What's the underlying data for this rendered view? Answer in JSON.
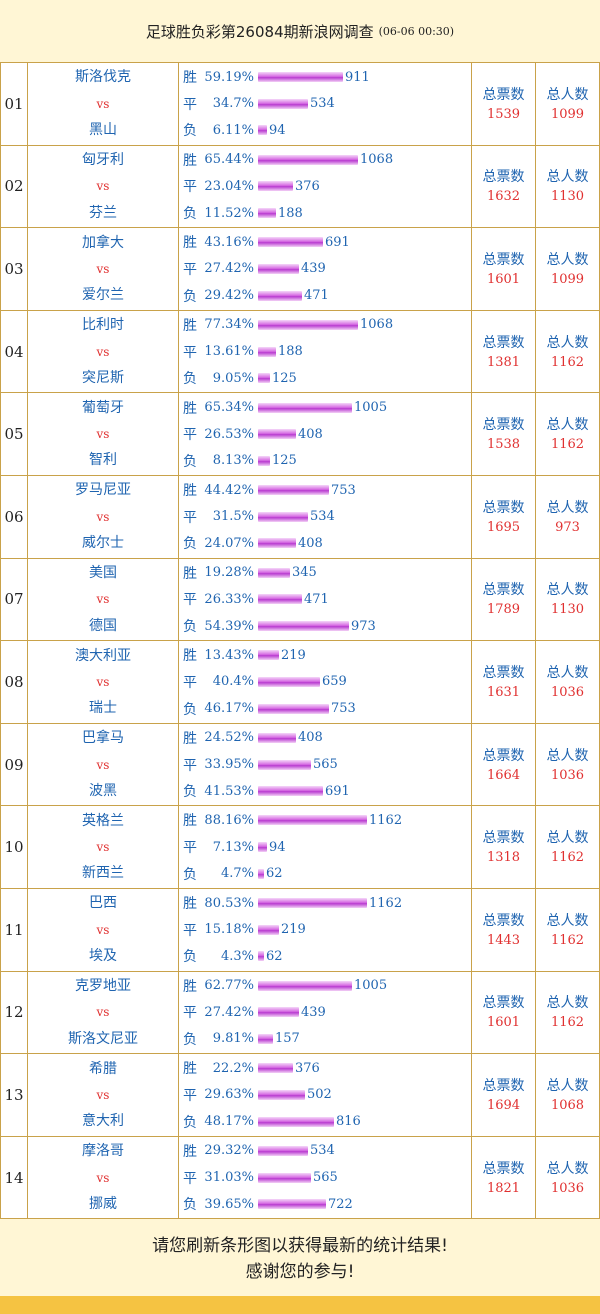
{
  "header": {
    "title": "足球胜负彩第26084期新浪网调查",
    "timestamp": "(06-06 00:30)"
  },
  "labels": {
    "win": "胜",
    "draw": "平",
    "lose": "负",
    "vs": "vs",
    "total_votes": "总票数",
    "total_people": "总人数"
  },
  "matches": [
    {
      "no": "01",
      "home": "斯洛伐克",
      "away": "黑山",
      "win_pct": "59.19%",
      "win": 911,
      "draw_pct": "34.7%",
      "draw": 534,
      "lose_pct": "6.11%",
      "lose": 94,
      "total_votes": "1539",
      "total_people": "1099"
    },
    {
      "no": "02",
      "home": "匈牙利",
      "away": "芬兰",
      "win_pct": "65.44%",
      "win": 1068,
      "draw_pct": "23.04%",
      "draw": 376,
      "lose_pct": "11.52%",
      "lose": 188,
      "total_votes": "1632",
      "total_people": "1130"
    },
    {
      "no": "03",
      "home": "加拿大",
      "away": "爱尔兰",
      "win_pct": "43.16%",
      "win": 691,
      "draw_pct": "27.42%",
      "draw": 439,
      "lose_pct": "29.42%",
      "lose": 471,
      "total_votes": "1601",
      "total_people": "1099"
    },
    {
      "no": "04",
      "home": "比利时",
      "away": "突尼斯",
      "win_pct": "77.34%",
      "win": 1068,
      "draw_pct": "13.61%",
      "draw": 188,
      "lose_pct": "9.05%",
      "lose": 125,
      "total_votes": "1381",
      "total_people": "1162"
    },
    {
      "no": "05",
      "home": "葡萄牙",
      "away": "智利",
      "win_pct": "65.34%",
      "win": 1005,
      "draw_pct": "26.53%",
      "draw": 408,
      "lose_pct": "8.13%",
      "lose": 125,
      "total_votes": "1538",
      "total_people": "1162"
    },
    {
      "no": "06",
      "home": "罗马尼亚",
      "away": "威尔士",
      "win_pct": "44.42%",
      "win": 753,
      "draw_pct": "31.5%",
      "draw": 534,
      "lose_pct": "24.07%",
      "lose": 408,
      "total_votes": "1695",
      "total_people": "973"
    },
    {
      "no": "07",
      "home": "美国",
      "away": "德国",
      "win_pct": "19.28%",
      "win": 345,
      "draw_pct": "26.33%",
      "draw": 471,
      "lose_pct": "54.39%",
      "lose": 973,
      "total_votes": "1789",
      "total_people": "1130"
    },
    {
      "no": "08",
      "home": "澳大利亚",
      "away": "瑞士",
      "win_pct": "13.43%",
      "win": 219,
      "draw_pct": "40.4%",
      "draw": 659,
      "lose_pct": "46.17%",
      "lose": 753,
      "total_votes": "1631",
      "total_people": "1036"
    },
    {
      "no": "09",
      "home": "巴拿马",
      "away": "波黑",
      "win_pct": "24.52%",
      "win": 408,
      "draw_pct": "33.95%",
      "draw": 565,
      "lose_pct": "41.53%",
      "lose": 691,
      "total_votes": "1664",
      "total_people": "1036"
    },
    {
      "no": "10",
      "home": "英格兰",
      "away": "新西兰",
      "win_pct": "88.16%",
      "win": 1162,
      "draw_pct": "7.13%",
      "draw": 94,
      "lose_pct": "4.7%",
      "lose": 62,
      "total_votes": "1318",
      "total_people": "1162"
    },
    {
      "no": "11",
      "home": "巴西",
      "away": "埃及",
      "win_pct": "80.53%",
      "win": 1162,
      "draw_pct": "15.18%",
      "draw": 219,
      "lose_pct": "4.3%",
      "lose": 62,
      "total_votes": "1443",
      "total_people": "1162"
    },
    {
      "no": "12",
      "home": "克罗地亚",
      "away": "斯洛文尼亚",
      "win_pct": "62.77%",
      "win": 1005,
      "draw_pct": "27.42%",
      "draw": 439,
      "lose_pct": "9.81%",
      "lose": 157,
      "total_votes": "1601",
      "total_people": "1162"
    },
    {
      "no": "13",
      "home": "希腊",
      "away": "意大利",
      "win_pct": "22.2%",
      "win": 376,
      "draw_pct": "29.63%",
      "draw": 502,
      "lose_pct": "48.17%",
      "lose": 816,
      "total_votes": "1694",
      "total_people": "1068"
    },
    {
      "no": "14",
      "home": "摩洛哥",
      "away": "挪威",
      "win_pct": "29.32%",
      "win": 534,
      "draw_pct": "31.03%",
      "draw": 565,
      "lose_pct": "39.65%",
      "lose": 722,
      "total_votes": "1821",
      "total_people": "1036"
    }
  ],
  "footer": {
    "line1": "请您刷新条形图以获得最新的统计结果!",
    "line2": "感谢您的参与!"
  },
  "colors": {
    "bar": "#c84fdb",
    "link_blue": "#1f64b0",
    "red": "#e03030",
    "band": "#f5c342"
  }
}
